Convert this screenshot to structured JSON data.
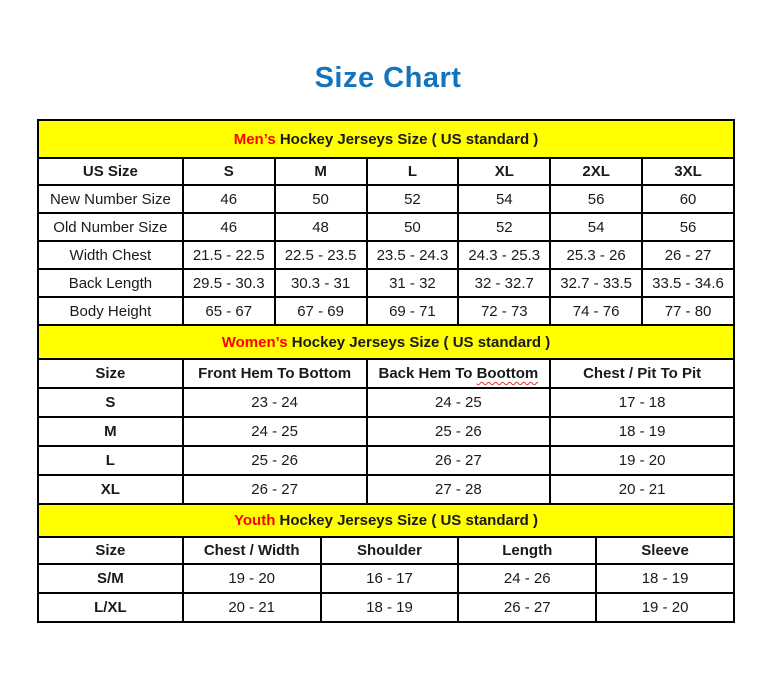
{
  "page": {
    "title": "Size Chart",
    "colors": {
      "title_blue": "#1374BE",
      "accent_red": "#FF0000",
      "banner_yellow": "#FFFF00",
      "squiggle_red": "#E03131",
      "border_black": "#000000"
    }
  },
  "tables": [
    {
      "id": "mens",
      "banner": {
        "highlight": "Men’s",
        "rest": " Hockey Jerseys Size ( US standard )"
      },
      "columns": [
        "US Size",
        "S",
        "M",
        "L",
        "XL",
        "2XL",
        "3XL"
      ],
      "rows": [
        {
          "label": "New Number Size",
          "values": [
            "46",
            "50",
            "52",
            "54",
            "56",
            "60"
          ]
        },
        {
          "label": "Old Number Size",
          "values": [
            "46",
            "48",
            "50",
            "52",
            "54",
            "56"
          ]
        },
        {
          "label": "Width Chest",
          "values": [
            "21.5 - 22.5",
            "22.5 - 23.5",
            "23.5 - 24.3",
            "24.3 - 25.3",
            "25.3 - 26",
            "26 - 27"
          ]
        },
        {
          "label": "Back Length",
          "values": [
            "29.5 - 30.3",
            "30.3 - 31",
            "31 - 32",
            "32 - 32.7",
            "32.7 - 33.5",
            "33.5 - 34.6"
          ]
        },
        {
          "label": "Body Height",
          "values": [
            "65 - 67",
            "67 - 69",
            "69 - 71",
            "72 - 73",
            "74 - 76",
            "77 - 80"
          ]
        }
      ]
    },
    {
      "id": "womens",
      "banner": {
        "highlight": "Women’s",
        "rest": " Hockey Jerseys Size ( US standard )"
      },
      "columns": [
        "Size",
        "Front Hem To Bottom",
        {
          "text": "Back Hem To ",
          "squiggle": "Boottom"
        },
        "Chest / Pit To Pit"
      ],
      "rows": [
        {
          "label": "S",
          "values": [
            "23 - 24",
            "24 - 25",
            "17 - 18"
          ]
        },
        {
          "label": "M",
          "values": [
            "24 - 25",
            "25 - 26",
            "18 - 19"
          ]
        },
        {
          "label": "L",
          "values": [
            "25 - 26",
            "26 - 27",
            "19 - 20"
          ]
        },
        {
          "label": "XL",
          "values": [
            "26 - 27",
            "27 - 28",
            "20 - 21"
          ]
        }
      ]
    },
    {
      "id": "youth",
      "banner": {
        "highlight": "Youth",
        "rest": " Hockey Jerseys Size ( US standard )"
      },
      "columns": [
        "Size",
        "Chest / Width",
        "Shoulder",
        "Length",
        "Sleeve"
      ],
      "rows": [
        {
          "label": "S/M",
          "values": [
            "19 - 20",
            "16 - 17",
            "24 - 26",
            "18 - 19"
          ]
        },
        {
          "label": "L/XL",
          "values": [
            "20 - 21",
            "18 - 19",
            "26 - 27",
            "19 - 20"
          ]
        }
      ]
    }
  ]
}
